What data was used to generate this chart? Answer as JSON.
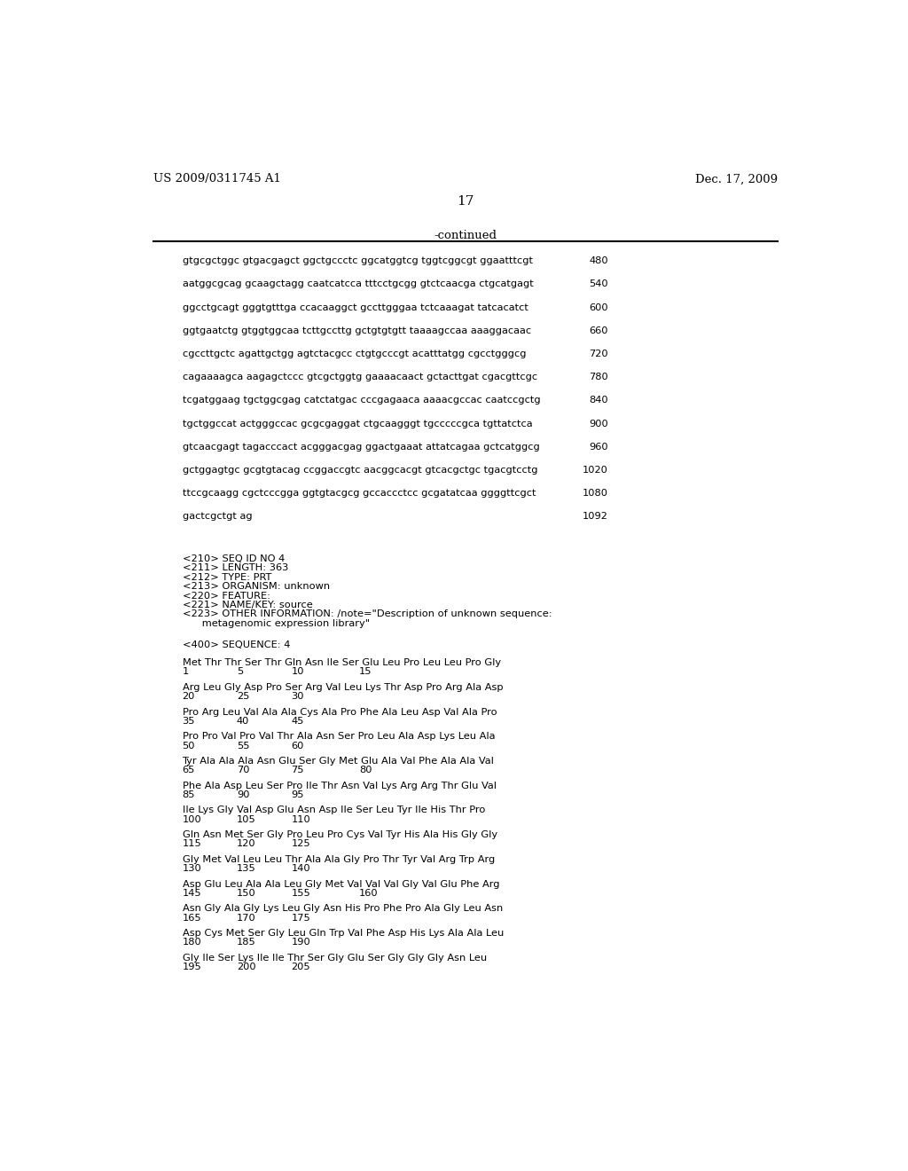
{
  "header_left": "US 2009/0311745 A1",
  "header_right": "Dec. 17, 2009",
  "page_number": "17",
  "continued_label": "-continued",
  "background_color": "#ffffff",
  "text_color": "#000000",
  "dna_lines": [
    [
      "gtgcgctggc gtgacgagct ggctgccctc ggcatggtcg tggtcggcgt ggaatttcgt",
      "480"
    ],
    [
      "aatggcgcag gcaagctagg caatcatcca tttcctgcgg gtctcaacga ctgcatgagt",
      "540"
    ],
    [
      "ggcctgcagt gggtgtttga ccacaaggct gccttgggaa tctcaaagat tatcacatct",
      "600"
    ],
    [
      "ggtgaatctg gtggtggcaa tcttgccttg gctgtgtgtt taaaagccaa aaaggacaac",
      "660"
    ],
    [
      "cgccttgctc agattgctgg agtctacgcc ctgtgcccgt acatttatgg cgcctgggcg",
      "720"
    ],
    [
      "cagaaaagca aagagctccc gtcgctggtg gaaaacaact gctacttgat cgacgttcgc",
      "780"
    ],
    [
      "tcgatggaag tgctggcgag catctatgac cccgagaaca aaaacgccac caatccgctg",
      "840"
    ],
    [
      "tgctggccat actgggccac gcgcgaggat ctgcaagggt tgcccccgca tgttatctca",
      "900"
    ],
    [
      "gtcaacgagt tagacccact acgggacgag ggactgaaat attatcagaa gctcatggcg",
      "960"
    ],
    [
      "gctggagtgc gcgtgtacag ccggaccgtc aacggcacgt gtcacgctgc tgacgtcctg",
      "1020"
    ],
    [
      "ttccgcaagg cgctcccgga ggtgtacgcg gccaccctcc gcgatatcaa ggggttcgct",
      "1080"
    ],
    [
      "gactcgctgt ag",
      "1092"
    ]
  ],
  "metadata_lines": [
    "<210> SEQ ID NO 4",
    "<211> LENGTH: 363",
    "<212> TYPE: PRT",
    "<213> ORGANISM: unknown",
    "<220> FEATURE:",
    "<221> NAME/KEY: source",
    "<223> OTHER INFORMATION: /note=\"Description of unknown sequence:",
    "      metagenomic expression library\""
  ],
  "sequence_label": "<400> SEQUENCE: 4",
  "protein_lines": [
    {
      "seq": "Met Thr Thr Ser Thr Gln Asn Ile Ser Glu Leu Pro Leu Leu Pro Gly",
      "nums": [
        [
          "1",
          0
        ],
        [
          "5",
          4
        ],
        [
          "10",
          8
        ],
        [
          "15",
          13
        ]
      ]
    },
    {
      "seq": "Arg Leu Gly Asp Pro Ser Arg Val Leu Lys Thr Asp Pro Arg Ala Asp",
      "nums": [
        [
          "20",
          0
        ],
        [
          "25",
          4
        ],
        [
          "30",
          8
        ]
      ]
    },
    {
      "seq": "Pro Arg Leu Val Ala Ala Cys Ala Pro Phe Ala Leu Asp Val Ala Pro",
      "nums": [
        [
          "35",
          0
        ],
        [
          "40",
          4
        ],
        [
          "45",
          8
        ]
      ]
    },
    {
      "seq": "Pro Pro Val Pro Val Thr Ala Asn Ser Pro Leu Ala Asp Lys Leu Ala",
      "nums": [
        [
          "50",
          0
        ],
        [
          "55",
          4
        ],
        [
          "60",
          8
        ]
      ]
    },
    {
      "seq": "Tyr Ala Ala Ala Asn Glu Ser Gly Met Glu Ala Val Phe Ala Ala Val",
      "nums": [
        [
          "65",
          0
        ],
        [
          "70",
          4
        ],
        [
          "75",
          8
        ],
        [
          "80",
          13
        ]
      ]
    },
    {
      "seq": "Phe Ala Asp Leu Ser Pro Ile Thr Asn Val Lys Arg Arg Thr Glu Val",
      "nums": [
        [
          "85",
          0
        ],
        [
          "90",
          4
        ],
        [
          "95",
          8
        ]
      ]
    },
    {
      "seq": "Ile Lys Gly Val Asp Glu Asn Asp Ile Ser Leu Tyr Ile His Thr Pro",
      "nums": [
        [
          "100",
          0
        ],
        [
          "105",
          4
        ],
        [
          "110",
          8
        ]
      ]
    },
    {
      "seq": "Gln Asn Met Ser Gly Pro Leu Pro Cys Val Tyr His Ala His Gly Gly",
      "nums": [
        [
          "115",
          0
        ],
        [
          "120",
          4
        ],
        [
          "125",
          8
        ]
      ]
    },
    {
      "seq": "Gly Met Val Leu Leu Thr Ala Ala Gly Pro Thr Tyr Val Arg Trp Arg",
      "nums": [
        [
          "130",
          0
        ],
        [
          "135",
          4
        ],
        [
          "140",
          8
        ]
      ]
    },
    {
      "seq": "Asp Glu Leu Ala Ala Leu Gly Met Val Val Val Gly Val Glu Phe Arg",
      "nums": [
        [
          "145",
          0
        ],
        [
          "150",
          4
        ],
        [
          "155",
          8
        ],
        [
          "160",
          13
        ]
      ]
    },
    {
      "seq": "Asn Gly Ala Gly Lys Leu Gly Asn His Pro Phe Pro Ala Gly Leu Asn",
      "nums": [
        [
          "165",
          0
        ],
        [
          "170",
          4
        ],
        [
          "175",
          8
        ]
      ]
    },
    {
      "seq": "Asp Cys Met Ser Gly Leu Gln Trp Val Phe Asp His Lys Ala Ala Leu",
      "nums": [
        [
          "180",
          0
        ],
        [
          "185",
          4
        ],
        [
          "190",
          8
        ]
      ]
    },
    {
      "seq": "Gly Ile Ser Lys Ile Ile Thr Ser Gly Glu Ser Gly Gly Gly Asn Leu",
      "nums": [
        [
          "195",
          0
        ],
        [
          "200",
          4
        ],
        [
          "205",
          8
        ]
      ]
    }
  ]
}
